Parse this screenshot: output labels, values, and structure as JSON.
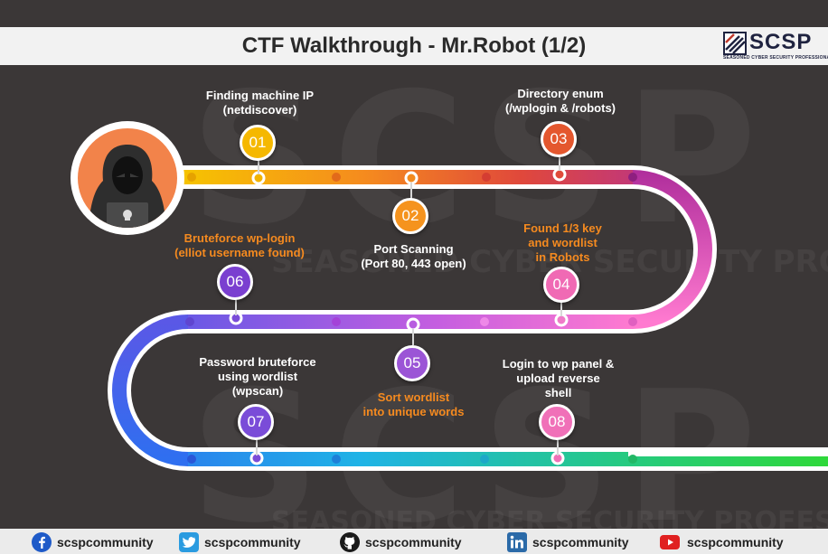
{
  "header": {
    "title": "CTF Walkthrough - Mr.Robot (1/2)",
    "logo_text": "SCSP",
    "logo_tagline": "SEASONED CYBER SECURITY PROFESSIONALS"
  },
  "watermark": {
    "big": "SCSP",
    "tagline": "SEASONED CYBER SECURITY PROFESSIONALS"
  },
  "colors": {
    "background": "#3b3737",
    "step_01": "#f5b800",
    "step_02": "#f5931e",
    "step_03": "#e4572e",
    "step_04": "#f06ab4",
    "step_05": "#9b55d6",
    "step_06": "#7a3fd0",
    "step_07": "#7a4cd8",
    "step_08": "#f070b8",
    "highlight_text": "#f58a1f"
  },
  "steps": [
    {
      "number": "01",
      "label": "Finding machine IP\n(netdiscover)"
    },
    {
      "number": "02",
      "label": "Port Scanning\n(Port 80, 443 open)"
    },
    {
      "number": "03",
      "label": "Directory enum\n(/wplogin & /robots)"
    },
    {
      "number": "04",
      "label": "Found 1/3 key\nand wordlist\nin Robots"
    },
    {
      "number": "05",
      "label": "Sort wordlist\ninto unique words"
    },
    {
      "number": "06",
      "label": "Bruteforce wp-login\n(elliot username found)"
    },
    {
      "number": "07",
      "label": "Password bruteforce\nusing wordlist\n(wpscan)"
    },
    {
      "number": "08",
      "label": "Login to wp panel &\nupload reverse\nshell"
    }
  ],
  "footer": {
    "items": [
      {
        "icon": "facebook-icon",
        "handle": "scspcommunity"
      },
      {
        "icon": "twitter-icon",
        "handle": "scspcommunity"
      },
      {
        "icon": "github-icon",
        "handle": "scspcommunity"
      },
      {
        "icon": "linkedin-icon",
        "handle": "scspcommunity"
      },
      {
        "icon": "youtube-icon",
        "handle": "scspcommunity"
      }
    ]
  }
}
